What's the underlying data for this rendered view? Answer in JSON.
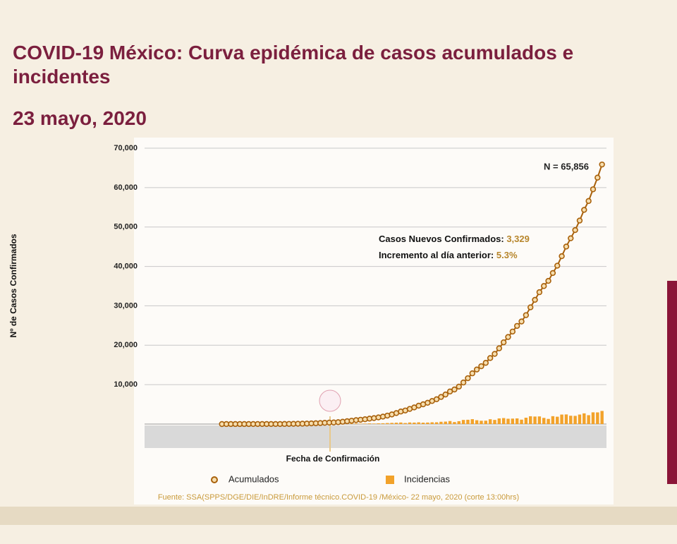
{
  "chart_data": {
    "type": "line-bar",
    "title": "COVID-19 México: Curva epidémica de casos acumulados e incidentes",
    "subtitle": "23 mayo, 2020",
    "y_label": "Nº de Casos Confirmados",
    "x_label": "Fecha de Confirmación",
    "source": "Fuente: SSA(SPPS/DGE/DIE/InDRE/Informe técnico.COVID-19 /México- 22 mayo, 2020 (corte 13:00hrs)",
    "annotations": {
      "total": "N = 65,856",
      "new_cases_label": "Casos Nuevos Confirmados:",
      "new_cases_value": "3,329",
      "increase_label": "Incremento al día anterior:",
      "increase_value": "5.3%"
    },
    "categories": [
      null,
      null,
      null,
      null,
      null,
      null,
      null,
      null,
      null,
      null,
      null,
      null,
      null,
      null,
      null,
      null,
      null,
      null,
      null,
      null,
      null,
      null,
      null,
      null,
      null,
      null,
      null,
      null,
      null,
      null,
      null,
      null,
      null,
      null,
      null,
      null,
      null,
      null,
      null,
      null,
      null,
      null,
      null,
      null,
      null,
      null,
      null,
      null,
      null,
      null,
      null,
      null,
      null,
      null,
      null,
      null,
      null,
      null,
      null,
      null,
      null,
      null,
      null,
      null,
      null,
      null,
      null,
      null,
      null,
      null,
      null,
      null,
      null,
      null,
      null,
      null,
      null,
      null,
      null,
      null,
      null,
      null,
      null,
      null,
      null,
      null,
      null,
      null,
      null,
      null,
      null,
      null,
      null,
      null,
      null,
      null,
      null,
      null,
      null,
      null,
      null,
      null,
      null
    ],
    "series": [
      {
        "name": "Acumulados",
        "kind": "line",
        "color": "#a8600a",
        "values": [
          null,
          null,
          null,
          null,
          null,
          null,
          null,
          null,
          null,
          null,
          null,
          null,
          null,
          null,
          null,
          null,
          null,
          1,
          4,
          5,
          5,
          5,
          5,
          5,
          6,
          7,
          7,
          7,
          7,
          8,
          12,
          26,
          41,
          53,
          82,
          93,
          118,
          164,
          203,
          251,
          316,
          367,
          405,
          475,
          585,
          717,
          848,
          993,
          1094,
          1215,
          1378,
          1510,
          1688,
          1890,
          2143,
          2439,
          2785,
          3181,
          3441,
          3844,
          4219,
          4661,
          5014,
          5399,
          5847,
          6297,
          6875,
          7497,
          8261,
          8772,
          9501,
          10544,
          11633,
          12872,
          13842,
          14677,
          15529,
          16752,
          17799,
          19224,
          20739,
          22088,
          23471,
          24905,
          26025,
          27634,
          29616,
          31522,
          33460,
          35022,
          36327,
          38324,
          40186,
          42595,
          45032,
          47144,
          49219,
          51633,
          54346,
          56594,
          59567,
          62527,
          65856
        ]
      },
      {
        "name": "Incidencias",
        "kind": "bar",
        "color": "#f2a22a",
        "values": [
          null,
          null,
          null,
          null,
          null,
          null,
          null,
          null,
          null,
          null,
          null,
          null,
          null,
          null,
          null,
          null,
          null,
          1,
          3,
          1,
          0,
          0,
          0,
          0,
          1,
          1,
          0,
          0,
          0,
          1,
          4,
          14,
          15,
          12,
          29,
          11,
          25,
          46,
          39,
          48,
          65,
          51,
          38,
          70,
          110,
          132,
          131,
          145,
          101,
          121,
          163,
          132,
          178,
          202,
          253,
          296,
          346,
          396,
          260,
          403,
          375,
          442,
          353,
          385,
          448,
          450,
          578,
          622,
          764,
          511,
          729,
          1043,
          1089,
          1239,
          970,
          835,
          852,
          1223,
          1047,
          1425,
          1515,
          1349,
          1383,
          1434,
          1120,
          1609,
          1982,
          1906,
          1938,
          1562,
          1305,
          1997,
          1862,
          2409,
          2437,
          2112,
          2075,
          2414,
          2713,
          2248,
          2973,
          2960,
          3329
        ]
      }
    ],
    "ylim": [
      0,
      70000
    ],
    "yticks": [
      {
        "value": 10000,
        "label": "10,000"
      },
      {
        "value": 20000,
        "label": "20,000"
      },
      {
        "value": 30000,
        "label": "30,000"
      },
      {
        "value": 40000,
        "label": "40,000"
      },
      {
        "value": 50000,
        "label": "50,000"
      },
      {
        "value": 60000,
        "label": "60,000"
      },
      {
        "value": 70000,
        "label": "70,000"
      }
    ],
    "grid": true
  }
}
